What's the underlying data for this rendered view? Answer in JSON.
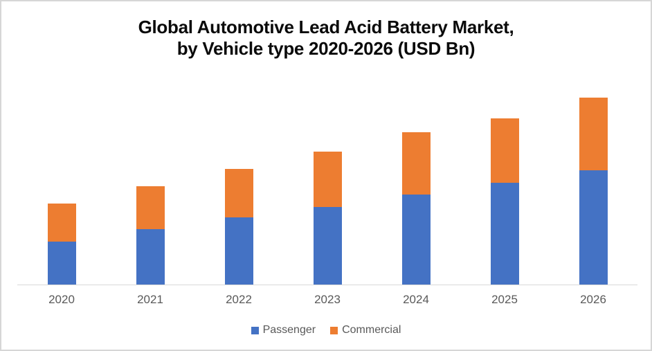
{
  "title": {
    "line1": "Global Automotive Lead Acid Battery Market,",
    "line2": "by Vehicle type 2020-2026 (USD Bn)"
  },
  "chart_data": {
    "type": "bar",
    "stacked": true,
    "title": "Global Automotive Lead Acid Battery Market, by Vehicle type 2020-2026 (USD Bn)",
    "categories": [
      "2020",
      "2021",
      "2022",
      "2023",
      "2024",
      "2025",
      "2026"
    ],
    "series": [
      {
        "name": "Passenger",
        "color": "#4472C4",
        "values": [
          12.5,
          16,
          19.5,
          22.5,
          26,
          29.5,
          33
        ]
      },
      {
        "name": "Commercial",
        "color": "#ED7D31",
        "values": [
          11,
          12.5,
          14,
          16,
          18,
          18.5,
          21
        ]
      }
    ],
    "totals": [
      23.5,
      28.5,
      33.5,
      38.5,
      44,
      48,
      54
    ],
    "xlabel": "",
    "ylabel": "",
    "ylim": [
      0,
      62
    ],
    "y_axis_visible": false,
    "grid": false,
    "legend_position": "bottom",
    "legend_entries": [
      "Passenger",
      "Commercial"
    ]
  },
  "colors": {
    "passenger": "#4472C4",
    "commercial": "#ED7D31",
    "axis_line": "#d9d9d9",
    "label_text": "#595959",
    "title_text": "#0a0a0a",
    "frame_border": "#d6d6d6",
    "background": "#ffffff"
  }
}
